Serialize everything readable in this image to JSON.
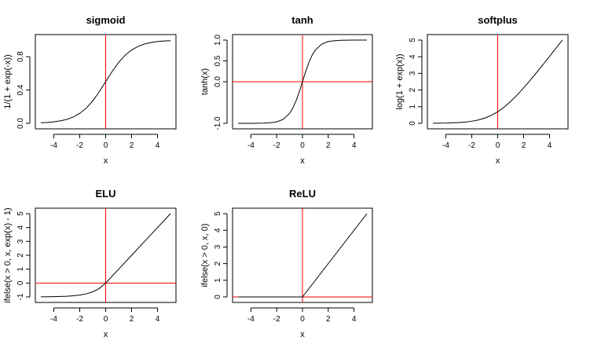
{
  "chart_data": [
    {
      "type": "line",
      "title": "sigmoid",
      "xlabel": "x",
      "ylabel": "1/(1 + exp(-x))",
      "xlim": [
        -5,
        5
      ],
      "ylim": [
        0,
        1
      ],
      "xticks": [
        -4,
        -2,
        0,
        2,
        4
      ],
      "yticks": [
        0.0,
        0.4,
        0.8
      ],
      "ytick_labels": [
        "0.0",
        "0.4",
        "0.8"
      ],
      "vline": 0,
      "series": [
        {
          "x": [
            -5,
            -4.5,
            -4,
            -3.5,
            -3,
            -2.5,
            -2,
            -1.5,
            -1,
            -0.5,
            0,
            0.5,
            1,
            1.5,
            2,
            2.5,
            3,
            3.5,
            4,
            4.5,
            5
          ],
          "y": [
            0.0067,
            0.011,
            0.018,
            0.0293,
            0.0474,
            0.0759,
            0.1192,
            0.1824,
            0.2689,
            0.3775,
            0.5,
            0.6225,
            0.7311,
            0.8176,
            0.8808,
            0.9241,
            0.9526,
            0.9707,
            0.982,
            0.989,
            0.9933
          ]
        }
      ]
    },
    {
      "type": "line",
      "title": "tanh",
      "xlabel": "x",
      "ylabel": "tanh(x)",
      "xlim": [
        -5,
        5
      ],
      "ylim": [
        -1,
        1
      ],
      "xticks": [
        -4,
        -2,
        0,
        2,
        4
      ],
      "yticks": [
        -1.0,
        0.0,
        0.5,
        1.0
      ],
      "ytick_labels": [
        "-1.0",
        "0.0",
        "0.5",
        "1.0"
      ],
      "vline": 0,
      "hline": 0,
      "series": [
        {
          "x": [
            -5,
            -4,
            -3,
            -2.5,
            -2,
            -1.5,
            -1,
            -0.75,
            -0.5,
            -0.25,
            0,
            0.25,
            0.5,
            0.75,
            1,
            1.5,
            2,
            2.5,
            3,
            4,
            5
          ],
          "y": [
            -0.9999,
            -0.9993,
            -0.9951,
            -0.9866,
            -0.964,
            -0.9051,
            -0.7616,
            -0.6351,
            -0.4621,
            -0.2449,
            0,
            0.2449,
            0.4621,
            0.6351,
            0.7616,
            0.9051,
            0.964,
            0.9866,
            0.9951,
            0.9993,
            0.9999
          ]
        }
      ]
    },
    {
      "type": "line",
      "title": "softplus",
      "xlabel": "x",
      "ylabel": "log(1 + exp(x))",
      "xlim": [
        -5,
        5
      ],
      "ylim": [
        0,
        5
      ],
      "xticks": [
        -4,
        -2,
        0,
        2,
        4
      ],
      "yticks": [
        0,
        1,
        2,
        3,
        4,
        5
      ],
      "ytick_labels": [
        "0",
        "1",
        "2",
        "3",
        "4",
        "5"
      ],
      "vline": 0,
      "series": [
        {
          "x": [
            -5,
            -4,
            -3,
            -2.5,
            -2,
            -1.5,
            -1,
            -0.5,
            0,
            0.5,
            1,
            1.5,
            2,
            2.5,
            3,
            3.5,
            4,
            4.5,
            5
          ],
          "y": [
            0.0067,
            0.0181,
            0.0486,
            0.0789,
            0.1269,
            0.2014,
            0.3133,
            0.4741,
            0.6931,
            0.9741,
            1.3133,
            1.7014,
            2.1269,
            2.5789,
            3.0486,
            3.5297,
            4.0181,
            4.5111,
            5.0067
          ]
        }
      ]
    },
    {
      "type": "line",
      "title": "ELU",
      "xlabel": "x",
      "ylabel": "ifelse(x > 0, x, exp(x) - 1)",
      "xlim": [
        -5,
        5
      ],
      "ylim": [
        -1,
        5
      ],
      "xticks": [
        -4,
        -2,
        0,
        2,
        4
      ],
      "yticks": [
        -1,
        0,
        1,
        2,
        3,
        4,
        5
      ],
      "ytick_labels": [
        "-1",
        "0",
        "1",
        "2",
        "3",
        "4",
        "5"
      ],
      "vline": 0,
      "hline": 0,
      "series": [
        {
          "x": [
            -5,
            -4,
            -3,
            -2.5,
            -2,
            -1.5,
            -1,
            -0.5,
            0,
            1,
            2,
            3,
            4,
            5
          ],
          "y": [
            -0.9933,
            -0.9817,
            -0.9502,
            -0.9179,
            -0.8647,
            -0.7769,
            -0.6321,
            -0.3935,
            0,
            1,
            2,
            3,
            4,
            5
          ]
        }
      ]
    },
    {
      "type": "line",
      "title": "ReLU",
      "xlabel": "x",
      "ylabel": "ifelse(x > 0, x, 0)",
      "xlim": [
        -5,
        5
      ],
      "ylim": [
        0,
        5
      ],
      "xticks": [
        -4,
        -2,
        0,
        2,
        4
      ],
      "yticks": [
        0,
        1,
        2,
        3,
        4,
        5
      ],
      "ytick_labels": [
        "0",
        "1",
        "2",
        "3",
        "4",
        "5"
      ],
      "vline": 0,
      "hline": 0,
      "series": [
        {
          "x": [
            -5,
            0,
            5
          ],
          "y": [
            0,
            0,
            5
          ]
        }
      ]
    }
  ]
}
